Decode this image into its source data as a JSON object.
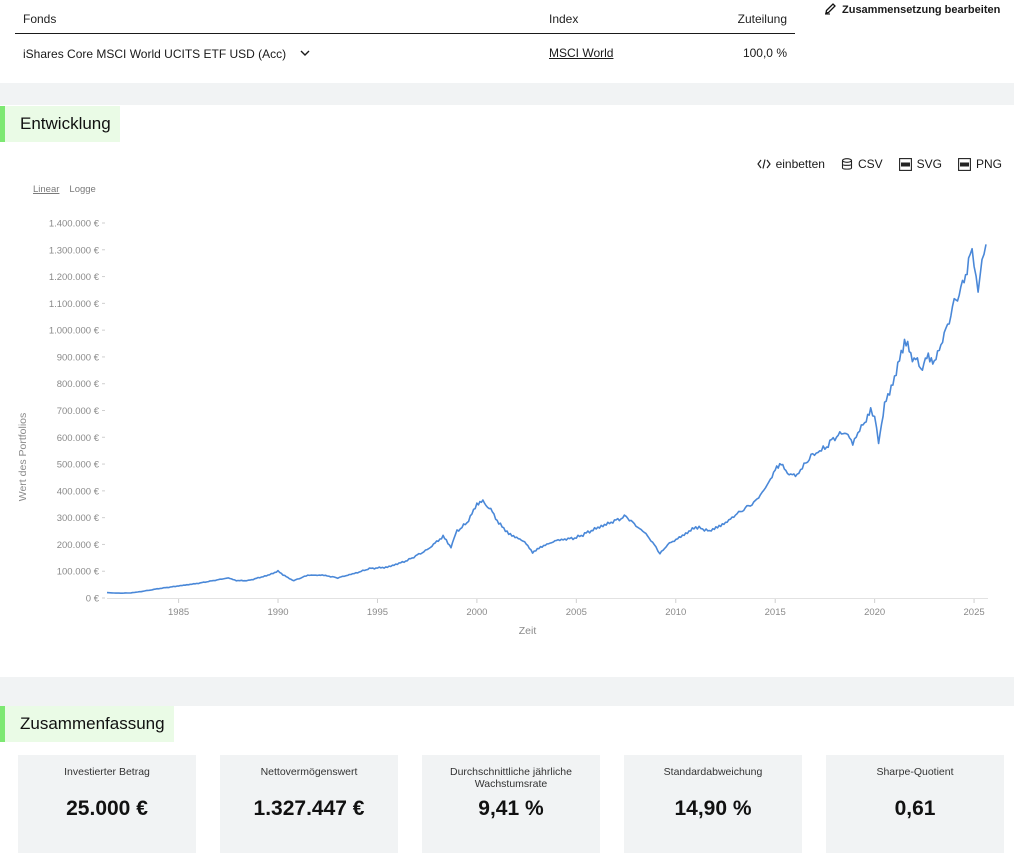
{
  "fund_table": {
    "headers": {
      "fund": "Fonds",
      "index": "Index",
      "allocation": "Zuteilung"
    },
    "rows": [
      {
        "fund": "iShares Core MSCI World UCITS ETF USD (Acc)",
        "index": "MSCI World",
        "allocation": "100,0 %"
      }
    ]
  },
  "edit_button": {
    "label": "Zusammensetzung bearbeiten",
    "icon": "pencil-icon"
  },
  "sections": {
    "development": "Entwicklung",
    "summary": "Zusammenfassung"
  },
  "toolbar": {
    "embed": "einbetten",
    "csv": "CSV",
    "svg": "SVG",
    "png": "PNG"
  },
  "scale_toggle": {
    "linear": "Linear",
    "log": "Logge",
    "active": "Linear"
  },
  "colors": {
    "line": "#4a88d8",
    "accent_green": "#7de872",
    "accent_green_bg": "#eafbe6",
    "band": "#f1f3f4"
  },
  "chart_data": {
    "type": "line",
    "xlabel": "Zeit",
    "ylabel": "Wert des Portfolios",
    "xlim": [
      1981.4,
      2025.7
    ],
    "ylim": [
      0,
      1400000
    ],
    "x_ticks": [
      "1985",
      "1990",
      "1995",
      "2000",
      "2005",
      "2010",
      "2015",
      "2020",
      "2025"
    ],
    "y_ticks": [
      "0 €",
      "100.000 €",
      "200.000 €",
      "300.000 €",
      "400.000 €",
      "500.000 €",
      "600.000 €",
      "700.000 €",
      "800.000 €",
      "900.000 €",
      "1.000.000 €",
      "1.100.000 €",
      "1.200.000 €",
      "1.300.000 €",
      "1.400.000 €"
    ],
    "grid": false,
    "legend": "none",
    "series": [
      {
        "x": [
          1981.4,
          1982.0,
          1982.6,
          1983.2,
          1984.0,
          1985.0,
          1986.0,
          1987.5,
          1987.9,
          1988.5,
          1989.5,
          1990.0,
          1990.5,
          1990.8,
          1991.5,
          1992.3,
          1993.0,
          1994.0,
          1994.6,
          1995.5,
          1996.5,
          1997.5,
          1998.3,
          1998.7,
          1999.0,
          1999.5,
          2000.0,
          2000.3,
          2000.7,
          2001.1,
          2001.6,
          2002.4,
          2002.8,
          2003.2,
          2004.0,
          2005.0,
          2006.0,
          2007.0,
          2007.5,
          2008.0,
          2008.5,
          2009.0,
          2009.2,
          2009.6,
          2010.5,
          2011.0,
          2011.7,
          2012.5,
          2013.0,
          2014.0,
          2014.6,
          2015.0,
          2015.3,
          2015.7,
          2016.1,
          2016.8,
          2017.5,
          2018.0,
          2018.5,
          2018.9,
          2019.5,
          2019.8,
          2020.0,
          2020.2,
          2020.5,
          2021.0,
          2021.5,
          2021.9,
          2022.4,
          2022.7,
          2023.0,
          2023.5,
          2024.0,
          2024.5,
          2024.8,
          2025.0,
          2025.2,
          2025.4,
          2025.6
        ],
        "y": [
          20000,
          18000,
          19000,
          25000,
          35000,
          45000,
          55000,
          75000,
          65000,
          65000,
          85000,
          100000,
          75000,
          65000,
          85000,
          85000,
          75000,
          95000,
          110000,
          115000,
          140000,
          180000,
          230000,
          190000,
          250000,
          280000,
          350000,
          360000,
          330000,
          280000,
          240000,
          210000,
          170000,
          190000,
          215000,
          225000,
          260000,
          290000,
          305000,
          270000,
          240000,
          190000,
          165000,
          200000,
          240000,
          265000,
          250000,
          280000,
          310000,
          360000,
          420000,
          480000,
          500000,
          460000,
          460000,
          530000,
          560000,
          600000,
          620000,
          580000,
          660000,
          700000,
          680000,
          580000,
          720000,
          820000,
          960000,
          900000,
          860000,
          900000,
          880000,
          980000,
          1100000,
          1180000,
          1300000,
          1250000,
          1150000,
          1250000,
          1320000
        ]
      }
    ]
  },
  "summary": {
    "cards": [
      {
        "label": "Investierter Betrag",
        "value": "25.000 €"
      },
      {
        "label": "Nettovermögenswert",
        "value": "1.327.447 €"
      },
      {
        "label": "Durchschnittliche jährliche Wachstumsrate",
        "value": "9,41 %"
      },
      {
        "label": "Standardabweichung",
        "value": "14,90 %"
      },
      {
        "label": "Sharpe-Quotient",
        "value": "0,61"
      }
    ]
  }
}
